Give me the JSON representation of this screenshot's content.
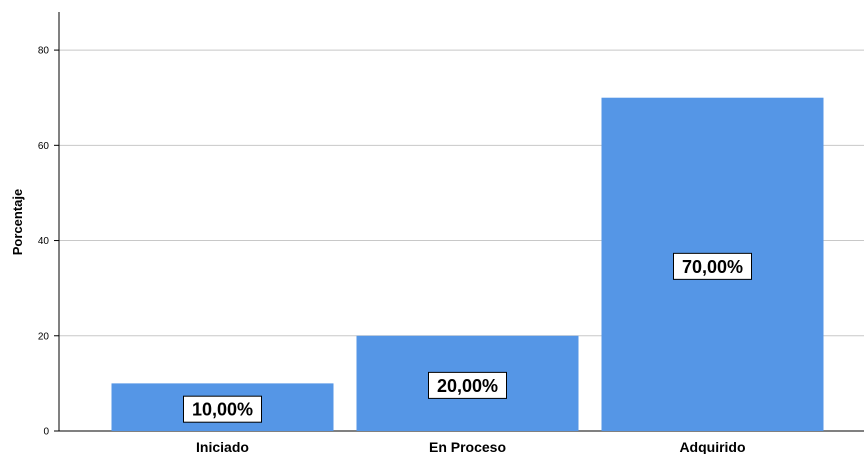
{
  "chart_data": {
    "type": "bar",
    "categories": [
      "Iniciado",
      "En Proceso",
      "Adquirido"
    ],
    "values": [
      10,
      20,
      70
    ],
    "data_labels": [
      "10,00%",
      "20,00%",
      "70,00%"
    ],
    "title": "",
    "xlabel": "",
    "ylabel": "Porcentaje",
    "ylim": [
      0,
      88
    ],
    "yticks": [
      0,
      20,
      40,
      60,
      80
    ],
    "ytick_labels": [
      "0",
      "20",
      "40",
      "60",
      "80"
    ],
    "grid": true,
    "bar_color": "#5596e6"
  }
}
